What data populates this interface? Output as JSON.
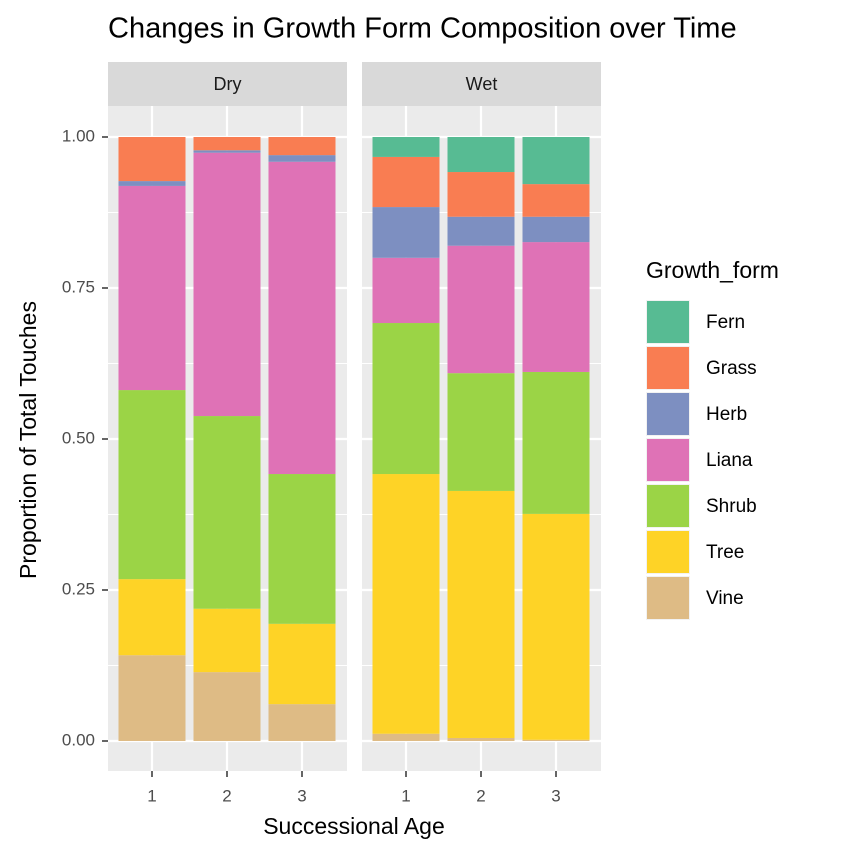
{
  "chart_data": {
    "type": "bar",
    "stacked": true,
    "title": "Changes in Growth Form Composition over Time",
    "x_label": "Successional Age",
    "y_label": "Proportion of Total Touches",
    "legend_title": "Growth_form",
    "legend": "right",
    "categories": [
      "1",
      "2",
      "3"
    ],
    "ylim": [
      0,
      1
    ],
    "yticks": [
      {
        "value": 0,
        "label": "0.00"
      },
      {
        "value": 0.25,
        "label": "0.25"
      },
      {
        "value": 0.5,
        "label": "0.50"
      },
      {
        "value": 0.75,
        "label": "0.75"
      },
      {
        "value": 1,
        "label": "1.00"
      }
    ],
    "grid": true,
    "series": [
      {
        "name": "Fern",
        "color": "#57bb93"
      },
      {
        "name": "Grass",
        "color": "#f97d52"
      },
      {
        "name": "Herb",
        "color": "#7d8fc1"
      },
      {
        "name": "Liana",
        "color": "#df72b6"
      },
      {
        "name": "Shrub",
        "color": "#9bd446"
      },
      {
        "name": "Tree",
        "color": "#fed326"
      },
      {
        "name": "Vine",
        "color": "#debb85"
      }
    ],
    "facets": [
      {
        "name": "Dry",
        "values": [
          [
            0,
            0,
            0
          ],
          [
            0.073,
            0.022,
            0.03
          ],
          [
            0.008,
            0.004,
            0.011
          ],
          [
            0.338,
            0.436,
            0.517
          ],
          [
            0.313,
            0.319,
            0.248
          ],
          [
            0.126,
            0.105,
            0.133
          ],
          [
            0.142,
            0.114,
            0.061
          ]
        ]
      },
      {
        "name": "Wet",
        "values": [
          [
            0.033,
            0.058,
            0.078
          ],
          [
            0.083,
            0.074,
            0.054
          ],
          [
            0.084,
            0.048,
            0.042
          ],
          [
            0.108,
            0.211,
            0.215
          ],
          [
            0.25,
            0.195,
            0.235
          ],
          [
            0.43,
            0.409,
            0.374
          ],
          [
            0.012,
            0.005,
            0.002
          ]
        ]
      }
    ]
  }
}
